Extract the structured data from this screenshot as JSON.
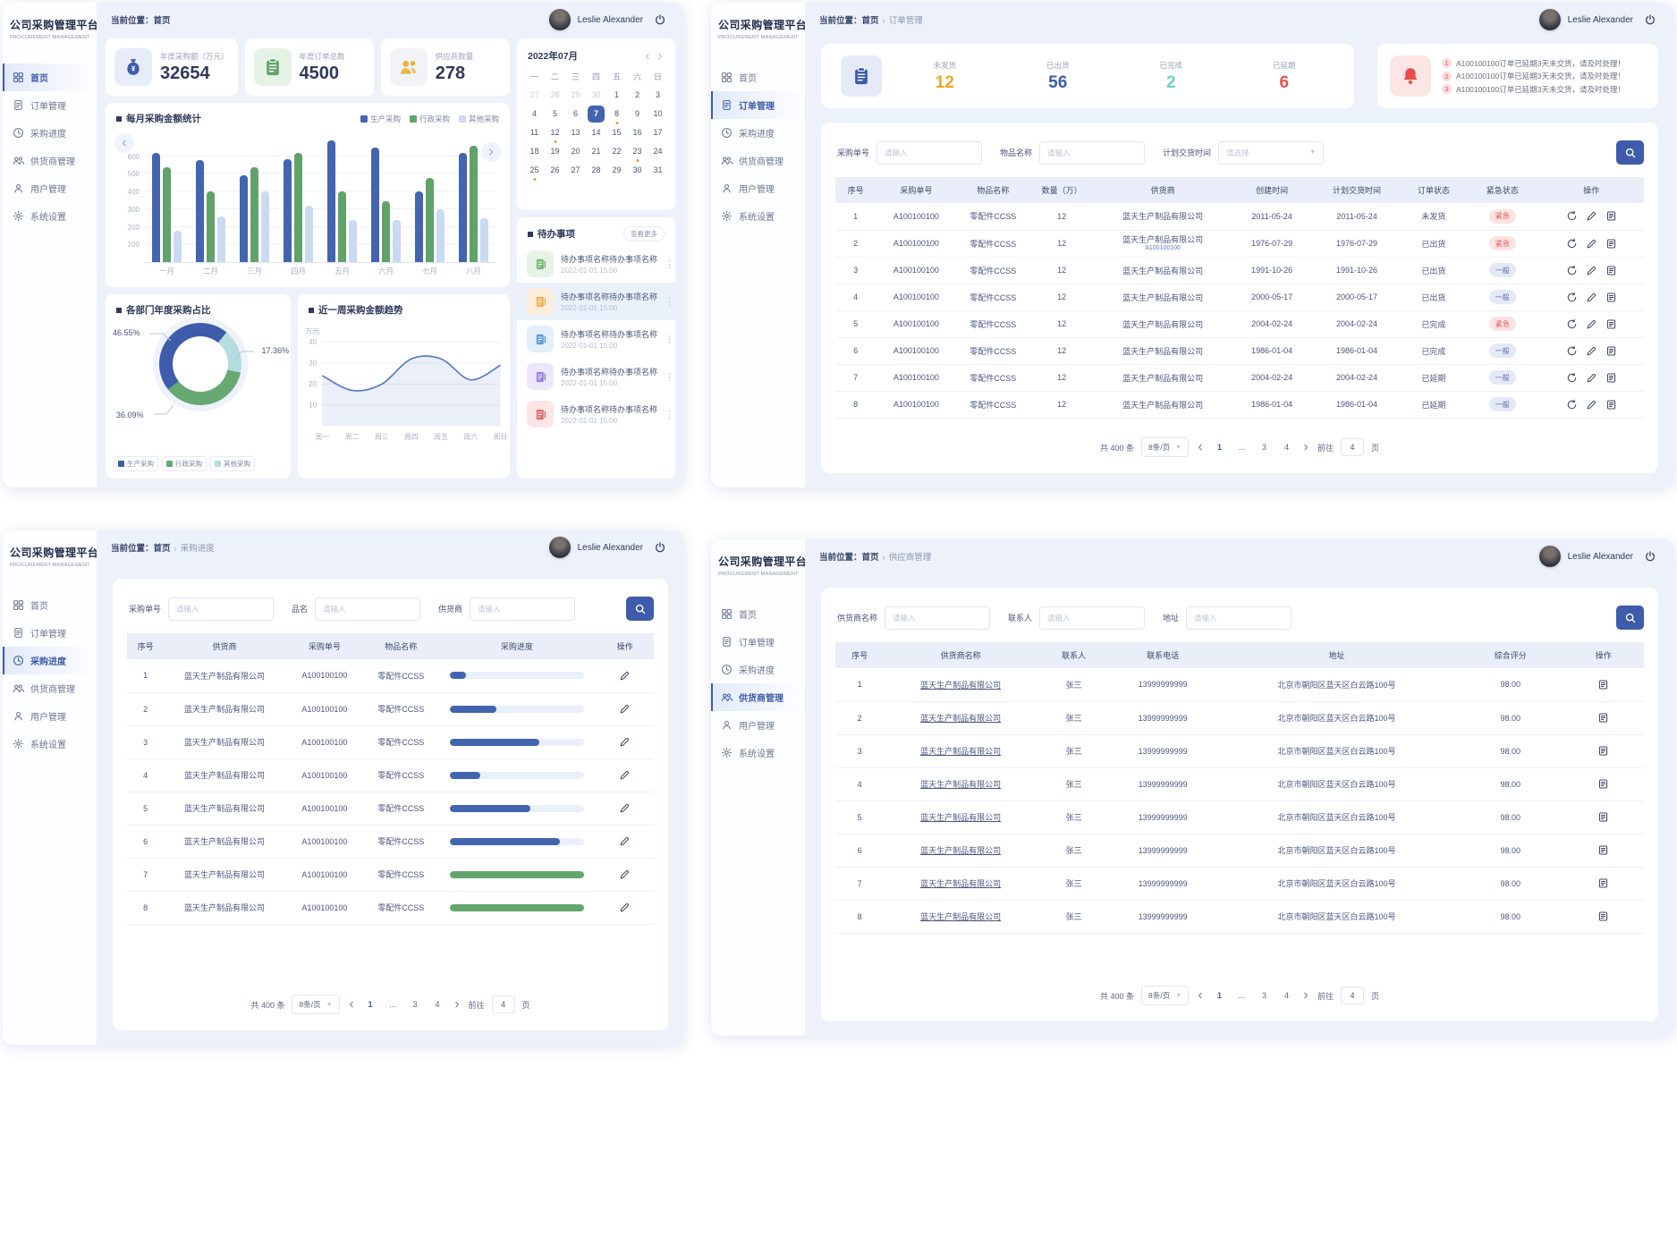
{
  "app": {
    "logo_title": "公司采购管理平台",
    "logo_subtitle": "PROCUREMENT MANAGEMENT",
    "user_name": "Leslie Alexander",
    "breadcrumb_prefix": "当前位置："
  },
  "sidebar": {
    "items": [
      "首页",
      "订单管理",
      "采购进度",
      "供货商管理",
      "用户管理",
      "系统设置"
    ]
  },
  "placeholders": {
    "input": "请输入",
    "select": "请选择"
  },
  "pagination": {
    "total": "共 400 条",
    "page_size": "8条/页",
    "pages": [
      "1",
      "...",
      "3",
      "4"
    ],
    "goto_label": "前往",
    "goto_value": "4",
    "page_suffix": "页"
  },
  "home": {
    "breadcrumb": [
      "首页"
    ],
    "stats": [
      {
        "label": "年度采购额（万元）",
        "value": "32654",
        "icon": "moneybag",
        "tile": "#e8ebf8",
        "color": "#3e5cab"
      },
      {
        "label": "年度订单总数",
        "value": "4500",
        "icon": "clipboard",
        "tile": "#e5f3e6",
        "color": "#63a66d"
      },
      {
        "label": "供应商数量",
        "value": "278",
        "icon": "suppliers",
        "tile": "#f1f3f7",
        "color": "#f0b143"
      }
    ],
    "chart_data": [
      {
        "type": "bar",
        "title": "每月采购金额统计",
        "unit": "万元",
        "categories": [
          "一月",
          "二月",
          "三月",
          "四月",
          "五月",
          "六月",
          "七月",
          "八月"
        ],
        "series": [
          {
            "name": "生产采购",
            "color": "#4365b0",
            "values": [
              620,
              580,
              490,
              585,
              690,
              650,
              400,
              620
            ]
          },
          {
            "name": "行政采购",
            "color": "#61a26b",
            "values": [
              540,
              400,
              540,
              620,
              400,
              345,
              475,
              660
            ]
          },
          {
            "name": "其他采购",
            "color": "#c9daf1",
            "values": [
              180,
              260,
              400,
              320,
              240,
              240,
              300,
              250
            ]
          }
        ],
        "yticks": [
          100,
          200,
          300,
          400,
          500,
          600
        ],
        "ymax": 700
      },
      {
        "type": "pie",
        "title": "各部门年度采购占比",
        "slices": [
          {
            "name": "生产采购",
            "value": 46.55,
            "label": "46.55%",
            "color": "#3e5cab"
          },
          {
            "name": "行政采购",
            "value": 36.09,
            "label": "36.09%",
            "color": "#68a873"
          },
          {
            "name": "其他采购",
            "value": 17.36,
            "label": "17.36%",
            "color": "#b5dde0"
          }
        ]
      },
      {
        "type": "line",
        "title": "近一周采购金额趋势",
        "unit": "万元",
        "x": [
          "周一",
          "周二",
          "周三",
          "周四",
          "周五",
          "周六",
          "周日"
        ],
        "values": [
          24,
          17,
          20,
          32,
          32,
          22,
          29
        ],
        "yticks": [
          10,
          20,
          30,
          40
        ],
        "color": "#5b7bc7"
      }
    ],
    "calendar": {
      "title": "2022年07月",
      "day_headers": [
        "一",
        "二",
        "三",
        "四",
        "五",
        "六",
        "日"
      ],
      "weeks": [
        [
          {
            "d": "27",
            "m": 1
          },
          {
            "d": "28",
            "m": 1
          },
          {
            "d": "29",
            "m": 1
          },
          {
            "d": "30",
            "m": 1
          },
          {
            "d": "1"
          },
          {
            "d": "2"
          },
          {
            "d": "3"
          }
        ],
        [
          {
            "d": "4"
          },
          {
            "d": "5"
          },
          {
            "d": "6"
          },
          {
            "d": "7",
            "s": 1
          },
          {
            "d": "8",
            "dot": 1
          },
          {
            "d": "9"
          },
          {
            "d": "10"
          }
        ],
        [
          {
            "d": "11"
          },
          {
            "d": "12",
            "dot": 1
          },
          {
            "d": "13"
          },
          {
            "d": "14"
          },
          {
            "d": "15"
          },
          {
            "d": "16"
          },
          {
            "d": "17"
          }
        ],
        [
          {
            "d": "18"
          },
          {
            "d": "19"
          },
          {
            "d": "20"
          },
          {
            "d": "21"
          },
          {
            "d": "22"
          },
          {
            "d": "23",
            "dot": 1
          },
          {
            "d": "24"
          }
        ],
        [
          {
            "d": "25",
            "dot": 1
          },
          {
            "d": "26"
          },
          {
            "d": "27"
          },
          {
            "d": "28"
          },
          {
            "d": "29"
          },
          {
            "d": "30"
          },
          {
            "d": "31"
          }
        ]
      ]
    },
    "todo": {
      "title": "待办事项",
      "more": "查看更多",
      "items": [
        {
          "name": "待办事项名称待办事项名称",
          "time": "2022-01-01 15:00",
          "color": "#6cb06f",
          "tile": "#e7f3e7",
          "hl": 0
        },
        {
          "name": "待办事项名称待办事项名称",
          "time": "2022-01-01 15:00",
          "color": "#efa94a",
          "tile": "#fdeedb",
          "hl": 1
        },
        {
          "name": "待办事项名称待办事项名称",
          "time": "2022-01-01 15:00",
          "color": "#4f93d6",
          "tile": "#e3f0fb",
          "hl": 0
        },
        {
          "name": "待办事项名称待办事项名称",
          "time": "2022-01-01 15:00",
          "color": "#9277d8",
          "tile": "#ece7fa",
          "hl": 0
        },
        {
          "name": "待办事项名称待办事项名称",
          "time": "2022-01-01 15:00",
          "color": "#e06060",
          "tile": "#fbe5e5",
          "hl": 0
        }
      ]
    }
  },
  "orders": {
    "breadcrumb": [
      "首页",
      "订单管理"
    ],
    "stats": [
      {
        "label": "未发货",
        "value": "12",
        "color": "#f5a623"
      },
      {
        "label": "已出货",
        "value": "56",
        "color": "#3e5cab"
      },
      {
        "label": "已完成",
        "value": "2",
        "color": "#6fd1c6"
      },
      {
        "label": "已延期",
        "value": "6",
        "color": "#e85151"
      }
    ],
    "notices": [
      "A100100100订单已延期3天未交货，请及时处理！",
      "A100100100订单已延期3天未交货，请及时处理！",
      "A100100100订单已延期3天未交货，请及时处理！"
    ],
    "filters": [
      {
        "label": "采购单号",
        "ph": "请输入"
      },
      {
        "label": "物品名称",
        "ph": "请输入"
      },
      {
        "label": "计划交货时间",
        "ph": "请选择",
        "select": true
      }
    ],
    "table": {
      "columns": [
        "序号",
        "采购单号",
        "物品名称",
        "数量（万）",
        "供货商",
        "创建时间",
        "计划交货时间",
        "订单状态",
        "紧急状态",
        "操作"
      ],
      "rows": [
        {
          "no": "1",
          "order": "A100100100",
          "item": "零配件CCSS",
          "qty": "12",
          "supplier": "蓝天生产制品有限公司",
          "created": "2011-05-24",
          "due": "2011-05-24",
          "status": "未发货",
          "urgency": "紧急"
        },
        {
          "no": "2",
          "order": "A100100100",
          "item": "零配件CCSS",
          "qty": "12",
          "supplier": "蓝天生产制品有限公司",
          "note": "A100100100",
          "created": "1976-07-29",
          "due": "1976-07-29",
          "status": "已出货",
          "urgency": "紧急"
        },
        {
          "no": "3",
          "order": "A100100100",
          "item": "零配件CCSS",
          "qty": "12",
          "supplier": "蓝天生产制品有限公司",
          "created": "1991-10-26",
          "due": "1991-10-26",
          "status": "已出货",
          "urgency": "一般"
        },
        {
          "no": "4",
          "order": "A100100100",
          "item": "零配件CCSS",
          "qty": "12",
          "supplier": "蓝天生产制品有限公司",
          "created": "2000-05-17",
          "due": "2000-05-17",
          "status": "已出货",
          "urgency": "一般"
        },
        {
          "no": "5",
          "order": "A100100100",
          "item": "零配件CCSS",
          "qty": "12",
          "supplier": "蓝天生产制品有限公司",
          "created": "2004-02-24",
          "due": "2004-02-24",
          "status": "已完成",
          "urgency": "紧急"
        },
        {
          "no": "6",
          "order": "A100100100",
          "item": "零配件CCSS",
          "qty": "12",
          "supplier": "蓝天生产制品有限公司",
          "created": "1986-01-04",
          "due": "1986-01-04",
          "status": "已完成",
          "urgency": "一般"
        },
        {
          "no": "7",
          "order": "A100100100",
          "item": "零配件CCSS",
          "qty": "12",
          "supplier": "蓝天生产制品有限公司",
          "created": "2004-02-24",
          "due": "2004-02-24",
          "status": "已延期",
          "urgency": "一般"
        },
        {
          "no": "8",
          "order": "A100100100",
          "item": "零配件CCSS",
          "qty": "12",
          "supplier": "蓝天生产制品有限公司",
          "created": "1986-01-04",
          "due": "1986-01-04",
          "status": "已延期",
          "urgency": "一般"
        }
      ]
    }
  },
  "progress": {
    "breadcrumb": [
      "首页",
      "采购进度"
    ],
    "filters": [
      {
        "label": "采购单号",
        "ph": "请输入"
      },
      {
        "label": "品名",
        "ph": "请输入"
      },
      {
        "label": "供货商",
        "ph": "请输入"
      }
    ],
    "table": {
      "columns": [
        "序号",
        "供货商",
        "采购单号",
        "物品名称",
        "采购进度",
        "操作"
      ],
      "rows": [
        {
          "no": "1",
          "supplier": "蓝天生产制品有限公司",
          "order": "A100100100",
          "item": "零配件CCSS",
          "pct": 12,
          "color": "#4365b0"
        },
        {
          "no": "2",
          "supplier": "蓝天生产制品有限公司",
          "order": "A100100100",
          "item": "零配件CCSS",
          "pct": 35,
          "color": "#4365b0"
        },
        {
          "no": "3",
          "supplier": "蓝天生产制品有限公司",
          "order": "A100100100",
          "item": "零配件CCSS",
          "pct": 67,
          "color": "#4365b0"
        },
        {
          "no": "4",
          "supplier": "蓝天生产制品有限公司",
          "order": "A100100100",
          "item": "零配件CCSS",
          "pct": 23,
          "color": "#4365b0"
        },
        {
          "no": "5",
          "supplier": "蓝天生产制品有限公司",
          "order": "A100100100",
          "item": "零配件CCSS",
          "pct": 60,
          "color": "#4365b0"
        },
        {
          "no": "6",
          "supplier": "蓝天生产制品有限公司",
          "order": "A100100100",
          "item": "零配件CCSS",
          "pct": 82,
          "color": "#4365b0"
        },
        {
          "no": "7",
          "supplier": "蓝天生产制品有限公司",
          "order": "A100100100",
          "item": "零配件CCSS",
          "pct": 100,
          "color": "#63a66d"
        },
        {
          "no": "8",
          "supplier": "蓝天生产制品有限公司",
          "order": "A100100100",
          "item": "零配件CCSS",
          "pct": 100,
          "color": "#63a66d"
        }
      ]
    }
  },
  "suppliers": {
    "breadcrumb": [
      "首页",
      "供应商管理"
    ],
    "filters": [
      {
        "label": "供货商名称",
        "ph": "请输入"
      },
      {
        "label": "联系人",
        "ph": "请输入"
      },
      {
        "label": "地址",
        "ph": "请输入"
      }
    ],
    "table": {
      "columns": [
        "序号",
        "供货商名称",
        "联系人",
        "联系电话",
        "地址",
        "综合评分",
        "操作"
      ],
      "rows": [
        {
          "no": "1",
          "supplier": "蓝天生产制品有限公司",
          "contact": "张三",
          "phone": "13999999999",
          "address": "北京市朝阳区蓝天区白云路100号",
          "score": "98.00"
        },
        {
          "no": "2",
          "supplier": "蓝天生产制品有限公司",
          "contact": "张三",
          "phone": "13999999999",
          "address": "北京市朝阳区蓝天区白云路100号",
          "score": "98.00"
        },
        {
          "no": "3",
          "supplier": "蓝天生产制品有限公司",
          "contact": "张三",
          "phone": "13999999999",
          "address": "北京市朝阳区蓝天区白云路100号",
          "score": "98.00"
        },
        {
          "no": "4",
          "supplier": "蓝天生产制品有限公司",
          "contact": "张三",
          "phone": "13999999999",
          "address": "北京市朝阳区蓝天区白云路100号",
          "score": "98.00"
        },
        {
          "no": "5",
          "supplier": "蓝天生产制品有限公司",
          "contact": "张三",
          "phone": "13999999999",
          "address": "北京市朝阳区蓝天区白云路100号",
          "score": "98.00"
        },
        {
          "no": "6",
          "supplier": "蓝天生产制品有限公司",
          "contact": "张三",
          "phone": "13999999999",
          "address": "北京市朝阳区蓝天区白云路100号",
          "score": "98.00"
        },
        {
          "no": "7",
          "supplier": "蓝天生产制品有限公司",
          "contact": "张三",
          "phone": "13999999999",
          "address": "北京市朝阳区蓝天区白云路100号",
          "score": "98.00"
        },
        {
          "no": "8",
          "supplier": "蓝天生产制品有限公司",
          "contact": "张三",
          "phone": "13999999999",
          "address": "北京市朝阳区蓝天区白云路100号",
          "score": "98.00"
        }
      ]
    }
  }
}
